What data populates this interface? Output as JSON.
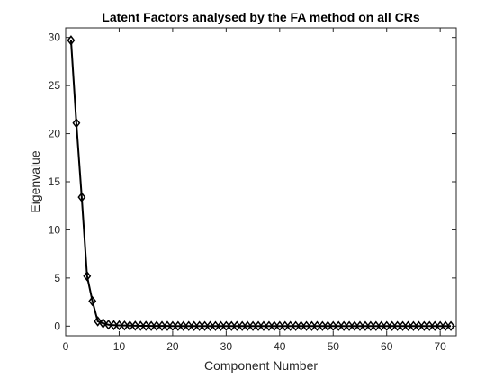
{
  "chart_data": {
    "type": "line",
    "title": "Latent Factors analysed by the FA method on all CRs",
    "xlabel": "Component Number",
    "ylabel": "Eigenvalue",
    "xlim": [
      0,
      73
    ],
    "ylim": [
      -1,
      31
    ],
    "xticks": [
      0,
      10,
      20,
      30,
      40,
      50,
      60,
      70
    ],
    "yticks": [
      0,
      5,
      10,
      15,
      20,
      25,
      30
    ],
    "grid": false,
    "marker": "diamond",
    "line_color": "#000000",
    "series": [
      {
        "x": [
          1,
          2,
          3,
          4,
          5,
          6,
          7,
          8,
          9,
          10,
          11,
          12,
          13,
          14,
          15,
          16,
          17,
          18,
          19,
          20,
          21,
          22,
          23,
          24,
          25,
          26,
          27,
          28,
          29,
          30,
          31,
          32,
          33,
          34,
          35,
          36,
          37,
          38,
          39,
          40,
          41,
          42,
          43,
          44,
          45,
          46,
          47,
          48,
          49,
          50,
          51,
          52,
          53,
          54,
          55,
          56,
          57,
          58,
          59,
          60,
          61,
          62,
          63,
          64,
          65,
          66,
          67,
          68,
          69,
          70,
          71,
          72
        ],
        "values": [
          29.7,
          21.1,
          13.4,
          5.2,
          2.6,
          0.5,
          0.3,
          0.15,
          0.1,
          0.08,
          0.06,
          0.05,
          0.04,
          0.03,
          0.03,
          0.02,
          0.02,
          0.02,
          0.02,
          0.01,
          0.01,
          0.01,
          0.01,
          0.01,
          0.01,
          0.01,
          0.01,
          0.01,
          0.01,
          0.01,
          0.01,
          0.01,
          0.01,
          0.01,
          0.01,
          0.01,
          0.01,
          0.01,
          0.01,
          0.01,
          0.01,
          0.01,
          0.01,
          0.01,
          0.01,
          0.01,
          0.01,
          0.01,
          0.01,
          0.01,
          0.01,
          0.01,
          0.01,
          0.01,
          0.01,
          0.01,
          0.01,
          0.01,
          0.01,
          0.01,
          0.01,
          0.01,
          0.01,
          0.01,
          0.01,
          0.01,
          0.01,
          0.01,
          0.01,
          0.01,
          0.01,
          0.01
        ]
      }
    ]
  }
}
